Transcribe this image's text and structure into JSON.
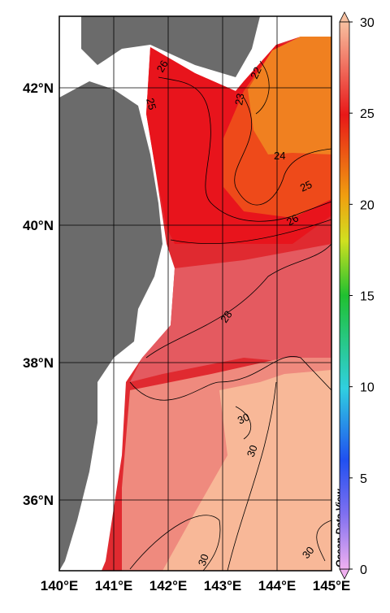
{
  "map": {
    "lon_ticks": [
      {
        "value": 140,
        "label": "140°E"
      },
      {
        "value": 141,
        "label": "141°E"
      },
      {
        "value": 142,
        "label": "142°E"
      },
      {
        "value": 143,
        "label": "143°E"
      },
      {
        "value": 144,
        "label": "144°E"
      },
      {
        "value": 145,
        "label": "145°E"
      }
    ],
    "lat_ticks": [
      {
        "value": 36,
        "label": "36°N"
      },
      {
        "value": 38,
        "label": "38°N"
      },
      {
        "value": 40,
        "label": "40°N"
      },
      {
        "value": 42,
        "label": "42°N"
      }
    ],
    "colorbar": {
      "range": [
        0,
        30
      ],
      "ticks": [
        0,
        5,
        10,
        15,
        20,
        25,
        30
      ]
    },
    "contour_labels": [
      "26",
      "25",
      "22",
      "23",
      "24",
      "25",
      "26",
      "28",
      "30",
      "30",
      "30",
      "30"
    ],
    "watermark": "Ocean Data View"
  }
}
